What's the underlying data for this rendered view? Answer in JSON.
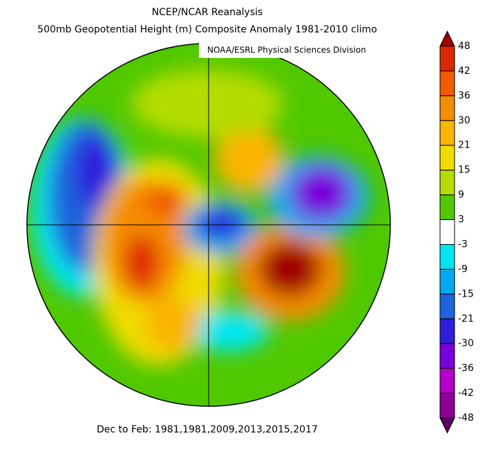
{
  "header": {
    "title": "NCEP/NCAR Reanalysis",
    "subtitle": "500mb Geopotential Height (m) Composite Anomaly 1981-2010 climo",
    "credit": "NOAA/ESRL Physical Sciences Division"
  },
  "colorbar": {
    "labels": [
      48,
      42,
      36,
      30,
      21,
      15,
      9,
      3,
      -3,
      -9,
      -15,
      -21,
      -30,
      -36,
      -42,
      -48
    ],
    "colors": [
      "#a00000",
      "#dc2800",
      "#f05a00",
      "#f58c00",
      "#fab400",
      "#f0dc00",
      "#b4dc00",
      "#50c800",
      "#ffffff",
      "#00e6f0",
      "#00aaf0",
      "#1e64dc",
      "#2d1edc",
      "#7800dc",
      "#b400c8",
      "#8c0096",
      "#5a0064"
    ]
  },
  "footer": "Dec to Feb: 1981,1981,2009,2013,2015,2017"
}
